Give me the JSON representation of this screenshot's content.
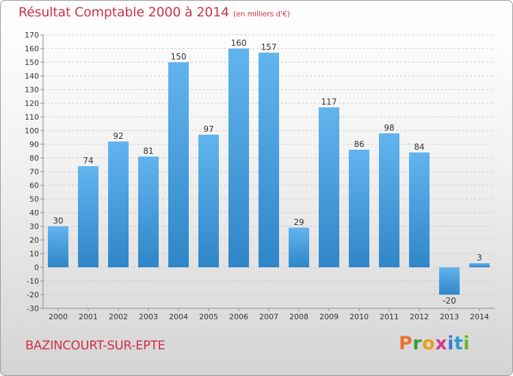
{
  "header": {
    "title": "Résultat Comptable 2000 à 2014",
    "unit": "(en milliers d'€)"
  },
  "footer": {
    "commune": "BAZINCOURT-SUR-EPTE",
    "logo_letters": [
      "P",
      "r",
      "o",
      "x",
      "i",
      "t",
      "i"
    ],
    "logo_colors": [
      "#e8732a",
      "#3a9a3a",
      "#e8a020",
      "#d43a8a",
      "#3a7ad0",
      "#2a9ad0",
      "#6ab82a"
    ]
  },
  "colors": {
    "title": "#d1314b",
    "bar_light": "#62b4ee",
    "bar_dark": "#2f86c8"
  },
  "chart_data": {
    "type": "bar",
    "title": "Résultat Comptable 2000 à 2014",
    "subtitle": "(en milliers d'€)",
    "categories": [
      "2000",
      "2001",
      "2002",
      "2003",
      "2004",
      "2005",
      "2006",
      "2007",
      "2008",
      "2009",
      "2010",
      "2011",
      "2012",
      "2013",
      "2014"
    ],
    "values": [
      30,
      74,
      92,
      81,
      150,
      97,
      160,
      157,
      29,
      117,
      86,
      98,
      84,
      -20,
      3
    ],
    "data_labels": [
      "30",
      "74",
      "92",
      "81",
      "150",
      "97",
      "160",
      "157",
      "29",
      "117",
      "86",
      "98",
      "84",
      "-20",
      "3"
    ],
    "yticks": [
      "-30",
      "-20",
      "-10",
      "0",
      "10",
      "20",
      "30",
      "40",
      "50",
      "60",
      "70",
      "80",
      "90",
      "100",
      "110",
      "120",
      "130",
      "140",
      "150",
      "160",
      "170"
    ],
    "ylim": [
      -30,
      170
    ],
    "grid": true,
    "legend": "none"
  }
}
